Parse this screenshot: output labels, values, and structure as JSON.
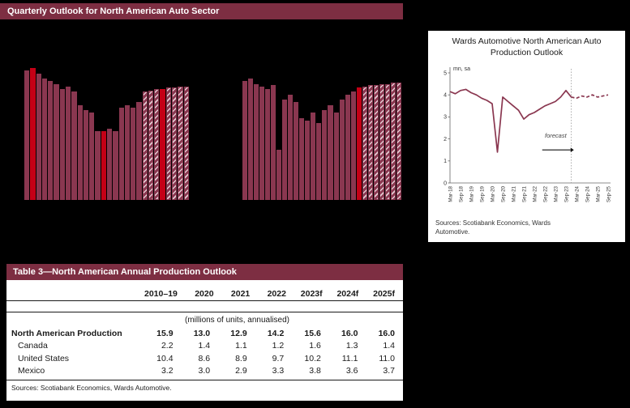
{
  "page": {
    "header_title": "Quarterly Outlook for North American Auto Sector",
    "colors": {
      "maroon": "#7d2e42",
      "bar": "#8a3750",
      "accent_red": "#c40016"
    }
  },
  "chart_data": [
    {
      "name": "quarterly-bar-chart-left",
      "type": "bar",
      "ymax": 5,
      "forecast_start_index": 20,
      "highlight_indices": [
        1,
        13,
        23
      ],
      "values": [
        4.9,
        5.0,
        4.8,
        4.6,
        4.5,
        4.4,
        4.2,
        4.3,
        4.1,
        3.6,
        3.4,
        3.3,
        2.6,
        2.6,
        2.7,
        2.6,
        3.5,
        3.6,
        3.5,
        3.7,
        4.1,
        4.15,
        4.2,
        4.2,
        4.25,
        4.25,
        4.3,
        4.3
      ]
    },
    {
      "name": "quarterly-bar-chart-right",
      "type": "bar",
      "ymax": 5,
      "forecast_start_index": 20,
      "highlight_indices": [
        20
      ],
      "values": [
        4.5,
        4.6,
        4.4,
        4.3,
        4.2,
        4.35,
        1.9,
        3.8,
        4.0,
        3.7,
        3.1,
        3.0,
        3.3,
        2.9,
        3.4,
        3.6,
        3.3,
        3.8,
        4.0,
        4.1,
        4.25,
        4.3,
        4.35,
        4.35,
        4.4,
        4.4,
        4.45,
        4.45
      ]
    },
    {
      "name": "wards-production-line-chart",
      "type": "line",
      "title": "Wards Automotive North American Auto Production Outlook",
      "ylabel": "mn, sa",
      "ylim": [
        0,
        5
      ],
      "yticks": [
        0,
        1,
        2,
        3,
        4,
        5
      ],
      "color": "#8a3750",
      "x_tick_labels": [
        "Mar-18",
        "Sep-18",
        "Mar-19",
        "Sep-19",
        "Mar-20",
        "Sep-20",
        "Mar-21",
        "Sep-21",
        "Mar-22",
        "Sep-22",
        "Mar-23",
        "Sep-23",
        "Mar-24",
        "Sep-24",
        "Mar-25",
        "Sep-25"
      ],
      "values": [
        4.15,
        4.05,
        4.2,
        4.25,
        4.1,
        4.0,
        3.85,
        3.75,
        3.6,
        1.4,
        3.9,
        3.7,
        3.5,
        3.3,
        2.9,
        3.1,
        3.2,
        3.35,
        3.5,
        3.6,
        3.7,
        3.9,
        4.2,
        3.9,
        3.85,
        3.95,
        3.9,
        4.0,
        3.9,
        3.95,
        4.0
      ],
      "forecast_start_index": 23,
      "annotation": "forecast",
      "sources": "Sources: Scotiabank Economics, Wards Automotive."
    }
  ],
  "table": {
    "title": "Table 3—North American Annual Production Outlook",
    "columns": [
      "2010–19",
      "2020",
      "2021",
      "2022",
      "2023f",
      "2024f",
      "2025f"
    ],
    "unit_note": "(millions of units, annualised)",
    "rows": [
      {
        "label": "North American Production",
        "bold": true,
        "values": [
          "15.9",
          "13.0",
          "12.9",
          "14.2",
          "15.6",
          "16.0",
          "16.0"
        ]
      },
      {
        "label": "Canada",
        "bold": false,
        "values": [
          "2.2",
          "1.4",
          "1.1",
          "1.2",
          "1.6",
          "1.3",
          "1.4"
        ]
      },
      {
        "label": "United States",
        "bold": false,
        "values": [
          "10.4",
          "8.6",
          "8.9",
          "9.7",
          "10.2",
          "11.1",
          "11.0"
        ]
      },
      {
        "label": "Mexico",
        "bold": false,
        "values": [
          "3.2",
          "3.0",
          "2.9",
          "3.3",
          "3.8",
          "3.6",
          "3.7"
        ]
      }
    ],
    "sources": "Sources: Scotiabank Economics, Wards Automotive."
  }
}
